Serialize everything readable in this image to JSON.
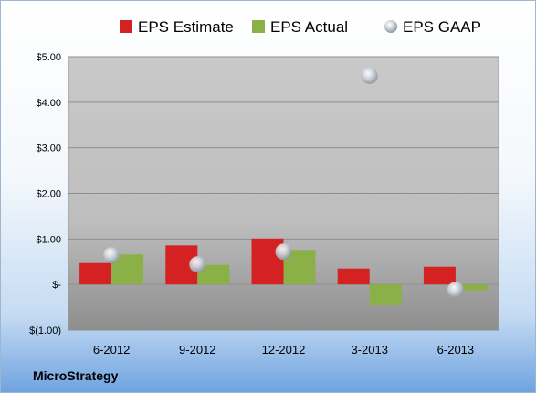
{
  "company": "MicroStrategy",
  "chart_data": {
    "type": "bar",
    "title": "",
    "xlabel": "",
    "ylabel": "",
    "categories": [
      "6-2012",
      "9-2012",
      "12-2012",
      "3-2013",
      "6-2013"
    ],
    "series": [
      {
        "name": "EPS Estimate",
        "kind": "bar",
        "color": "#d42222",
        "values": [
          0.47,
          0.86,
          1.01,
          0.35,
          0.39
        ]
      },
      {
        "name": "EPS Actual",
        "kind": "bar",
        "color": "#8cb048",
        "values": [
          0.66,
          0.43,
          0.74,
          -0.46,
          -0.13
        ]
      },
      {
        "name": "EPS GAAP",
        "kind": "scatter",
        "color": "#b9c3cf",
        "values": [
          0.64,
          0.44,
          0.72,
          4.58,
          -0.12
        ]
      }
    ],
    "ylim": [
      -1.0,
      5.0
    ],
    "yticks": [
      -1,
      0,
      1,
      2,
      3,
      4,
      5
    ],
    "ytick_labels": [
      "$(1.00)",
      "$-",
      "$1.00",
      "$2.00",
      "$3.00",
      "$4.00",
      "$5.00"
    ],
    "legend_position": "top",
    "grid": true
  }
}
